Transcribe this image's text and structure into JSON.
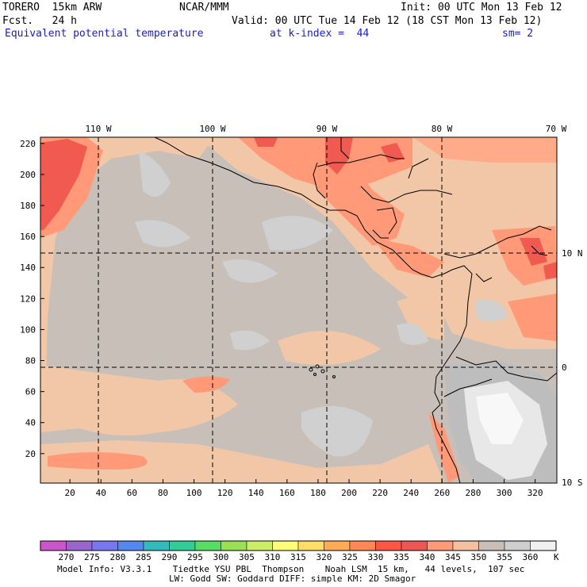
{
  "header": {
    "model": "TORERO  15km ARW",
    "org": "NCAR/MMM",
    "init": "Init: 00 UTC Mon 13 Feb 12",
    "fcst": "Fcst.   24 h",
    "valid": "Valid: 00 UTC Tue 14 Feb 12 (18 CST Mon 13 Feb 12)",
    "field": "Equivalent potential temperature",
    "level": "at k-index =  44",
    "smooth": "sm= 2"
  },
  "map": {
    "lon_labels": [
      "110 W",
      "100 W",
      "90 W",
      "80 W",
      "70 W"
    ],
    "lat_labels": [
      "10 N",
      "0",
      "10 S"
    ],
    "y_ticks": [
      "220",
      "200",
      "180",
      "160",
      "140",
      "120",
      "100",
      "80",
      "60",
      "40",
      "20"
    ],
    "x_ticks": [
      "20",
      "40",
      "60",
      "80",
      "100",
      "120",
      "140",
      "160",
      "180",
      "200",
      "220",
      "240",
      "260",
      "280",
      "300",
      "320"
    ]
  },
  "colorbar": {
    "labels": [
      "270",
      "275",
      "280",
      "285",
      "290",
      "295",
      "300",
      "305",
      "310",
      "315",
      "320",
      "325",
      "330",
      "335",
      "340",
      "345",
      "350",
      "355",
      "360"
    ],
    "unit": "K",
    "colors": [
      "#cc55cc",
      "#9966cc",
      "#7777ee",
      "#5588ee",
      "#33bbbb",
      "#33cc99",
      "#55dd66",
      "#99e055",
      "#ccee66",
      "#ffff77",
      "#ffdd66",
      "#ffaa55",
      "#ff8855",
      "#ff5544",
      "#ee5555",
      "#ff9977",
      "#f5c0a0",
      "#c8c0b8",
      "#cfcfcf",
      "#f0f0f0"
    ]
  },
  "footer": {
    "line1": "Model Info: V3.3.1    Tiedtke YSU PBL  Thompson    Noah LSM  15 km,   44 levels,  107 sec",
    "line2": "LW: Godd SW: Goddard DIFF: simple KM: 2D Smagor"
  }
}
